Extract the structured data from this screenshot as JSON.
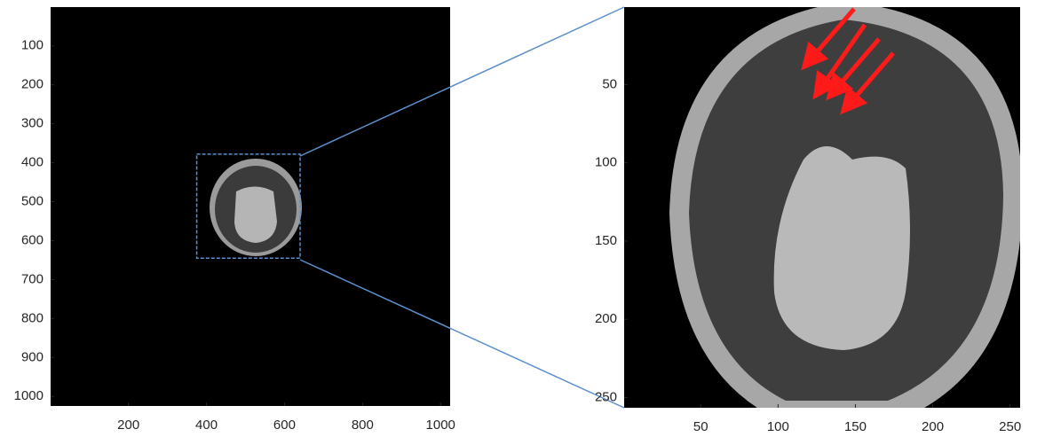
{
  "panels": [
    {
      "xlim": [
        0.5,
        1024.5
      ],
      "ylim": [
        0.5,
        1024.5
      ],
      "xticks": [
        200,
        400,
        600,
        800,
        1000
      ],
      "yticks": [
        100,
        200,
        300,
        400,
        500,
        600,
        700,
        800,
        900,
        1000
      ],
      "zoom_box": {
        "x": [
          375,
          640
        ],
        "y": [
          378,
          645
        ]
      }
    },
    {
      "xlim": [
        0.5,
        256.5
      ],
      "ylim": [
        0.5,
        256.5
      ],
      "xticks": [
        50,
        100,
        150,
        200,
        250
      ],
      "yticks": [
        50,
        100,
        150,
        200,
        250
      ]
    }
  ]
}
